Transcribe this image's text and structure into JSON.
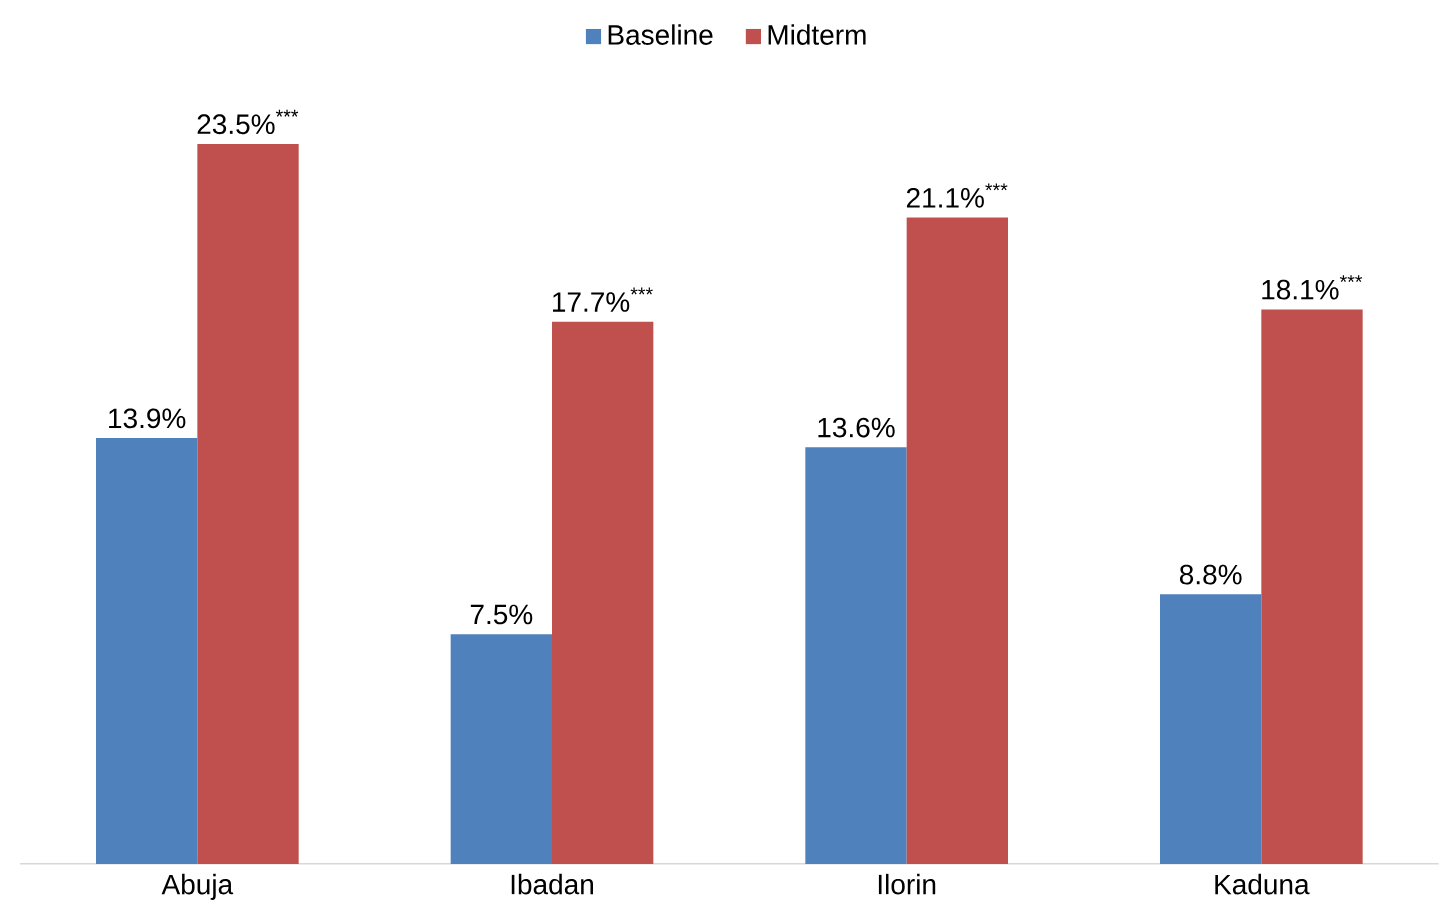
{
  "chart_data": {
    "type": "bar",
    "categories": [
      "Abuja",
      "Ibadan",
      "Ilorin",
      "Kaduna"
    ],
    "series": [
      {
        "name": "Baseline",
        "color": "#4f81bd",
        "values": [
          13.9,
          7.5,
          13.6,
          8.8
        ],
        "value_labels": [
          "13.9%",
          "7.5%",
          "13.6%",
          "8.8%"
        ]
      },
      {
        "name": "Midterm",
        "color": "#c0504d",
        "values": [
          23.5,
          17.7,
          21.1,
          18.1
        ],
        "value_labels": [
          "23.5%$^{***}$",
          "17.7%$^{***}$",
          "21.1%$^{***}$",
          "18.1%$^{***}$"
        ]
      }
    ],
    "legend": "top"
  }
}
